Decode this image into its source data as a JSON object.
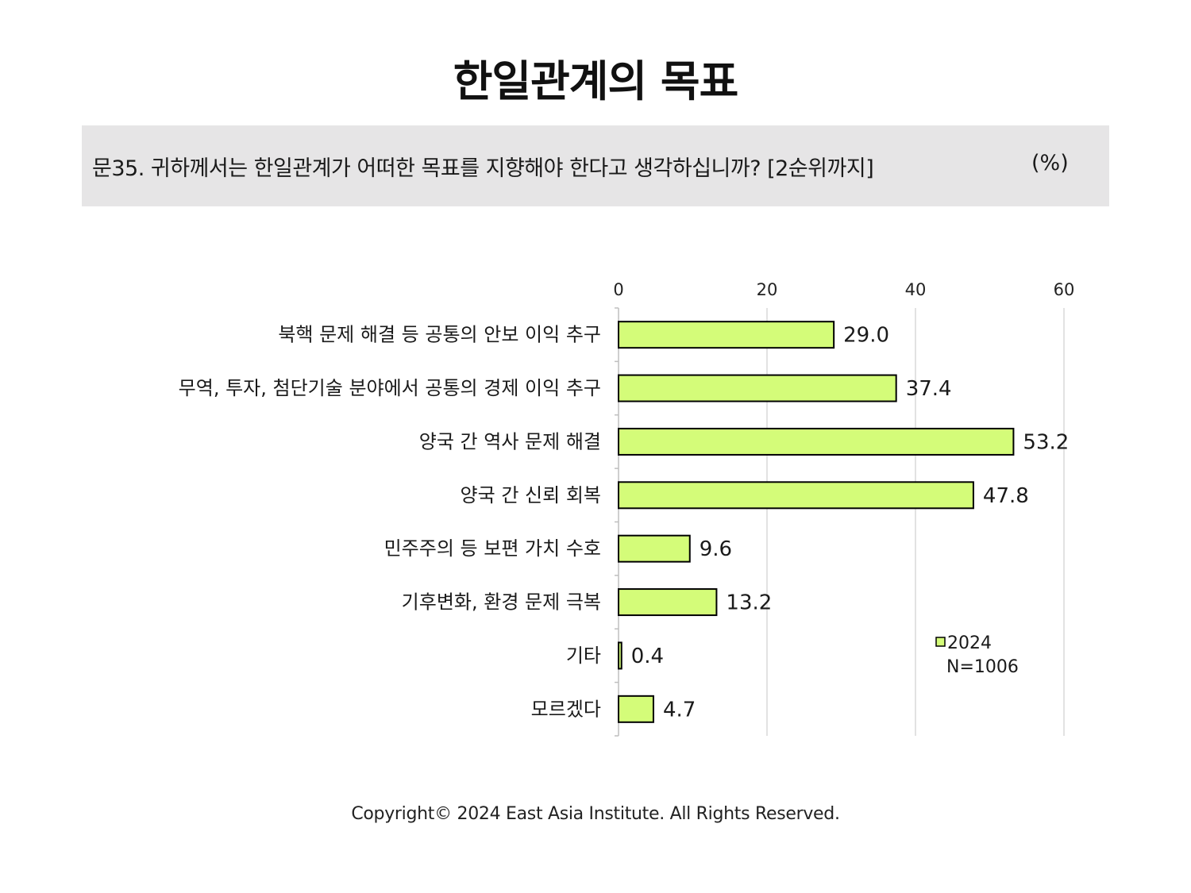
{
  "title": "한일관계의 목표",
  "question": {
    "text": "문35. 귀하께서는 한일관계가 어떠한 목표를 지향해야 한다고 생각하십니까? [2순위까지]",
    "unit": "(%)"
  },
  "chart_data": {
    "type": "bar",
    "orientation": "horizontal",
    "categories": [
      "북핵 문제 해결 등 공통의 안보 이익 추구",
      "무역, 투자, 첨단기술 분야에서 공통의 경제 이익 추구",
      "양국 간 역사 문제 해결",
      "양국 간 신뢰 회복",
      "민주주의 등 보편 가치 수호",
      "기후변화, 환경 문제 극복",
      "기타",
      "모르겠다"
    ],
    "series": [
      {
        "name": "2024",
        "values": [
          29.0,
          37.4,
          53.2,
          47.8,
          9.6,
          13.2,
          0.4,
          4.7
        ],
        "labels": [
          "29.0",
          "37.4",
          "53.2",
          "47.8",
          "9.6",
          "13.2",
          "0.4",
          "4.7"
        ]
      }
    ],
    "xlim": [
      0,
      60
    ],
    "xticks": [
      "0",
      "20",
      "40",
      "60"
    ],
    "grid": true,
    "legend_position": "bottom-right",
    "legend_note": "N=1006",
    "bar_color": "#d4fc79",
    "bar_edge_color": "#000000"
  },
  "footer": "Copyright© 2024 East Asia Institute. All Rights Reserved."
}
